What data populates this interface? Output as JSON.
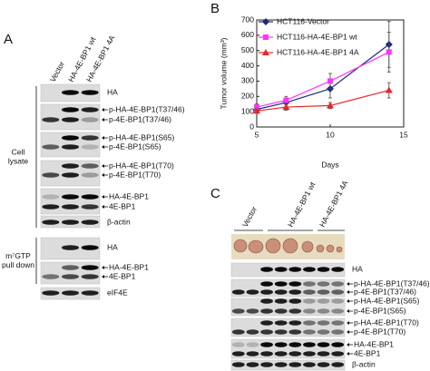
{
  "panel_a": {
    "label": "A",
    "columns": [
      "Vector",
      "HA-4E-BP1 wt",
      "HA-4E-BP1 4A"
    ],
    "groups": [
      {
        "lines": [
          "Cell",
          "lysate"
        ]
      },
      {
        "lines": [
          "m⁷GTP",
          "pull down"
        ]
      }
    ],
    "blots": [
      {
        "labels": [
          "HA"
        ]
      },
      {
        "labels": [
          "p-HA-4E-BP1(T37/46)",
          "p-4E-BP1(T37/46)"
        ]
      },
      {
        "labels": [
          "p-HA-4E-BP1(S65)",
          "p-4E-BP1(S65)"
        ]
      },
      {
        "labels": [
          "p-HA-4E-BP1(T70)",
          "p-4E-BP1(T70)"
        ]
      },
      {
        "labels": [
          "HA-4E-BP1",
          "4E-BP1"
        ]
      },
      {
        "labels": [
          "β-actin"
        ]
      },
      {
        "labels": [
          "HA"
        ]
      },
      {
        "labels": [
          "HA-4E-BP1",
          "4E-BP1"
        ]
      },
      {
        "labels": [
          "eIF4E"
        ]
      }
    ]
  },
  "panel_b": {
    "label": "B"
  },
  "chart_data": {
    "type": "line",
    "x_label": "Days",
    "y_label": "Tumor volume (mm³)",
    "x": [
      5,
      7,
      10,
      14
    ],
    "series": [
      {
        "name": "HCT116-Vector",
        "color": "#1c2a80",
        "marker": "diamond",
        "values": [
          115,
          160,
          250,
          540
        ],
        "errors": [
          20,
          30,
          60,
          150
        ]
      },
      {
        "name": "HCT116-HA-4E-BP1 wt",
        "color": "#ff33ff",
        "marker": "square",
        "values": [
          130,
          175,
          300,
          490
        ],
        "errors": [
          20,
          25,
          50,
          130
        ]
      },
      {
        "name": "HCT116-HA-4E-BP1 4A",
        "color": "#e8262a",
        "marker": "triangle",
        "values": [
          105,
          130,
          140,
          240
        ],
        "errors": [
          15,
          20,
          20,
          50
        ]
      }
    ],
    "xlim": [
      5,
      15
    ],
    "xticks": [
      5,
      10,
      15
    ],
    "ylim": [
      0,
      700
    ],
    "yticks": [
      0,
      100,
      200,
      300,
      400,
      500,
      600,
      700
    ],
    "legend": "upper left",
    "grid": false
  },
  "panel_c": {
    "label": "C",
    "columns": [
      "Vector",
      "HA-4E-BP1 wt",
      "HA-4E-BP1 4A"
    ],
    "blots": [
      {
        "labels": [
          "HA"
        ]
      },
      {
        "labels": [
          "p-HA-4E-BP1(T37/46)",
          "p-4E-BP1(T37/46)"
        ]
      },
      {
        "labels": [
          "p-HA-4E-BP1(S65)",
          "p-4E-BP1(S65)"
        ]
      },
      {
        "labels": [
          "p-HA-4E-BP1(T70)",
          "p-4E-BP1(T70)"
        ]
      },
      {
        "labels": [
          "HA-4E-BP1",
          "4E-BP1"
        ]
      },
      {
        "labels": [
          "β-actin"
        ]
      }
    ]
  }
}
